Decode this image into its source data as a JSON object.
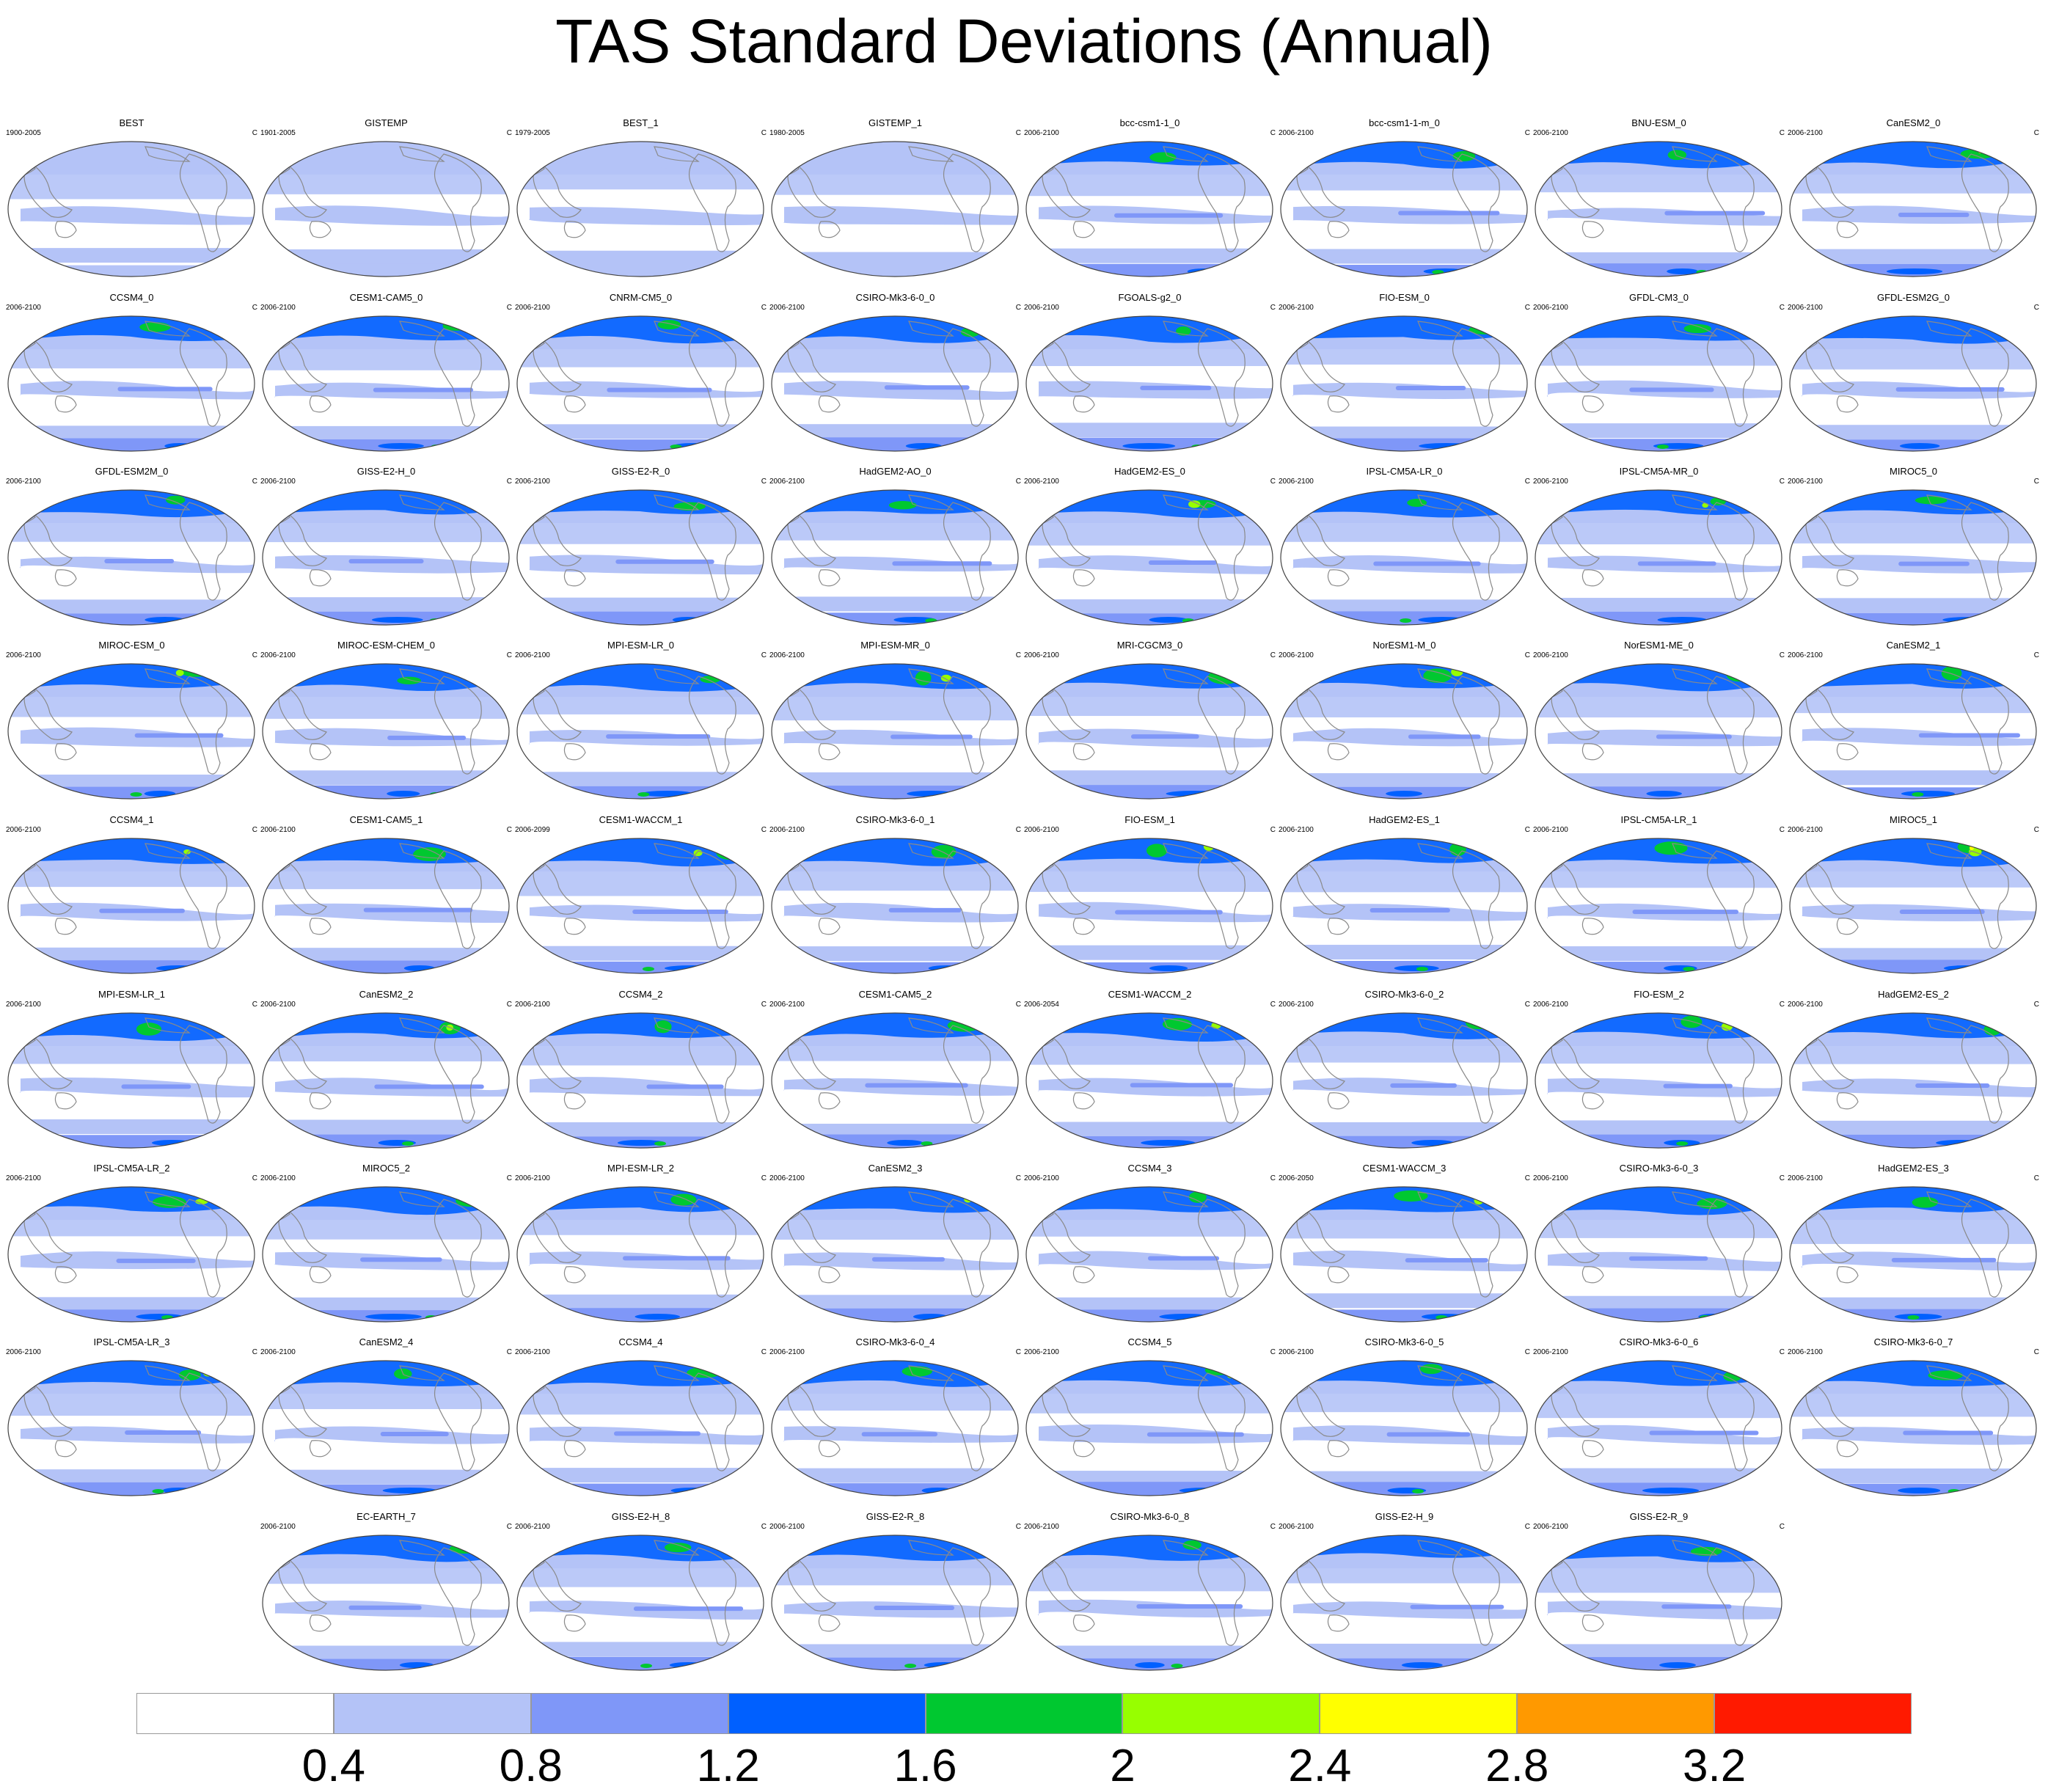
{
  "title": "TAS Standard Deviations (Annual)",
  "units": "C",
  "colorbar": {
    "colors": [
      "#ffffff",
      "#b4c3f7",
      "#7f97f8",
      "#0060ff",
      "#00c830",
      "#97ff00",
      "#ffff00",
      "#ff9900",
      "#ff1a00"
    ],
    "labels": [
      "0.4",
      "0.8",
      "1.2",
      "1.6",
      "2",
      "2.4",
      "2.8",
      "3.2"
    ]
  },
  "colors": {
    "land": "#8a8a8a",
    "ocean_border": "#444444"
  },
  "panels": [
    {
      "name": "BEST",
      "period": "1900-2005"
    },
    {
      "name": "GISTEMP",
      "period": "1901-2005"
    },
    {
      "name": "BEST_1",
      "period": "1979-2005"
    },
    {
      "name": "GISTEMP_1",
      "period": "1980-2005"
    },
    {
      "name": "bcc-csm1-1_0",
      "period": "2006-2100"
    },
    {
      "name": "bcc-csm1-1-m_0",
      "period": "2006-2100"
    },
    {
      "name": "BNU-ESM_0",
      "period": "2006-2100"
    },
    {
      "name": "CanESM2_0",
      "period": "2006-2100"
    },
    {
      "name": "CCSM4_0",
      "period": "2006-2100"
    },
    {
      "name": "CESM1-CAM5_0",
      "period": "2006-2100"
    },
    {
      "name": "CNRM-CM5_0",
      "period": "2006-2100"
    },
    {
      "name": "CSIRO-Mk3-6-0_0",
      "period": "2006-2100"
    },
    {
      "name": "FGOALS-g2_0",
      "period": "2006-2100"
    },
    {
      "name": "FIO-ESM_0",
      "period": "2006-2100"
    },
    {
      "name": "GFDL-CM3_0",
      "period": "2006-2100"
    },
    {
      "name": "GFDL-ESM2G_0",
      "period": "2006-2100"
    },
    {
      "name": "GFDL-ESM2M_0",
      "period": "2006-2100"
    },
    {
      "name": "GISS-E2-H_0",
      "period": "2006-2100"
    },
    {
      "name": "GISS-E2-R_0",
      "period": "2006-2100"
    },
    {
      "name": "HadGEM2-AO_0",
      "period": "2006-2100"
    },
    {
      "name": "HadGEM2-ES_0",
      "period": "2006-2100"
    },
    {
      "name": "IPSL-CM5A-LR_0",
      "period": "2006-2100"
    },
    {
      "name": "IPSL-CM5A-MR_0",
      "period": "2006-2100"
    },
    {
      "name": "MIROC5_0",
      "period": "2006-2100"
    },
    {
      "name": "MIROC-ESM_0",
      "period": "2006-2100"
    },
    {
      "name": "MIROC-ESM-CHEM_0",
      "period": "2006-2100"
    },
    {
      "name": "MPI-ESM-LR_0",
      "period": "2006-2100"
    },
    {
      "name": "MPI-ESM-MR_0",
      "period": "2006-2100"
    },
    {
      "name": "MRI-CGCM3_0",
      "period": "2006-2100"
    },
    {
      "name": "NorESM1-M_0",
      "period": "2006-2100"
    },
    {
      "name": "NorESM1-ME_0",
      "period": "2006-2100"
    },
    {
      "name": "CanESM2_1",
      "period": "2006-2100"
    },
    {
      "name": "CCSM4_1",
      "period": "2006-2100"
    },
    {
      "name": "CESM1-CAM5_1",
      "period": "2006-2100"
    },
    {
      "name": "CESM1-WACCM_1",
      "period": "2006-2099"
    },
    {
      "name": "CSIRO-Mk3-6-0_1",
      "period": "2006-2100"
    },
    {
      "name": "FIO-ESM_1",
      "period": "2006-2100"
    },
    {
      "name": "HadGEM2-ES_1",
      "period": "2006-2100"
    },
    {
      "name": "IPSL-CM5A-LR_1",
      "period": "2006-2100"
    },
    {
      "name": "MIROC5_1",
      "period": "2006-2100"
    },
    {
      "name": "MPI-ESM-LR_1",
      "period": "2006-2100"
    },
    {
      "name": "CanESM2_2",
      "period": "2006-2100"
    },
    {
      "name": "CCSM4_2",
      "period": "2006-2100"
    },
    {
      "name": "CESM1-CAM5_2",
      "period": "2006-2100"
    },
    {
      "name": "CESM1-WACCM_2",
      "period": "2006-2054"
    },
    {
      "name": "CSIRO-Mk3-6-0_2",
      "period": "2006-2100"
    },
    {
      "name": "FIO-ESM_2",
      "period": "2006-2100"
    },
    {
      "name": "HadGEM2-ES_2",
      "period": "2006-2100"
    },
    {
      "name": "IPSL-CM5A-LR_2",
      "period": "2006-2100"
    },
    {
      "name": "MIROC5_2",
      "period": "2006-2100"
    },
    {
      "name": "MPI-ESM-LR_2",
      "period": "2006-2100"
    },
    {
      "name": "CanESM2_3",
      "period": "2006-2100"
    },
    {
      "name": "CCSM4_3",
      "period": "2006-2100"
    },
    {
      "name": "CESM1-WACCM_3",
      "period": "2006-2050"
    },
    {
      "name": "CSIRO-Mk3-6-0_3",
      "period": "2006-2100"
    },
    {
      "name": "HadGEM2-ES_3",
      "period": "2006-2100"
    },
    {
      "name": "IPSL-CM5A-LR_3",
      "period": "2006-2100"
    },
    {
      "name": "CanESM2_4",
      "period": "2006-2100"
    },
    {
      "name": "CCSM4_4",
      "period": "2006-2100"
    },
    {
      "name": "CSIRO-Mk3-6-0_4",
      "period": "2006-2100"
    },
    {
      "name": "CCSM4_5",
      "period": "2006-2100"
    },
    {
      "name": "CSIRO-Mk3-6-0_5",
      "period": "2006-2100"
    },
    {
      "name": "CSIRO-Mk3-6-0_6",
      "period": "2006-2100"
    },
    {
      "name": "CSIRO-Mk3-6-0_7",
      "period": "2006-2100"
    },
    {
      "name": "EC-EARTH_7",
      "period": "2006-2100"
    },
    {
      "name": "GISS-E2-H_8",
      "period": "2006-2100"
    },
    {
      "name": "GISS-E2-R_8",
      "period": "2006-2100"
    },
    {
      "name": "CSIRO-Mk3-6-0_8",
      "period": "2006-2100"
    },
    {
      "name": "GISS-E2-H_9",
      "period": "2006-2100"
    },
    {
      "name": "GISS-E2-R_9",
      "period": "2006-2100"
    }
  ]
}
